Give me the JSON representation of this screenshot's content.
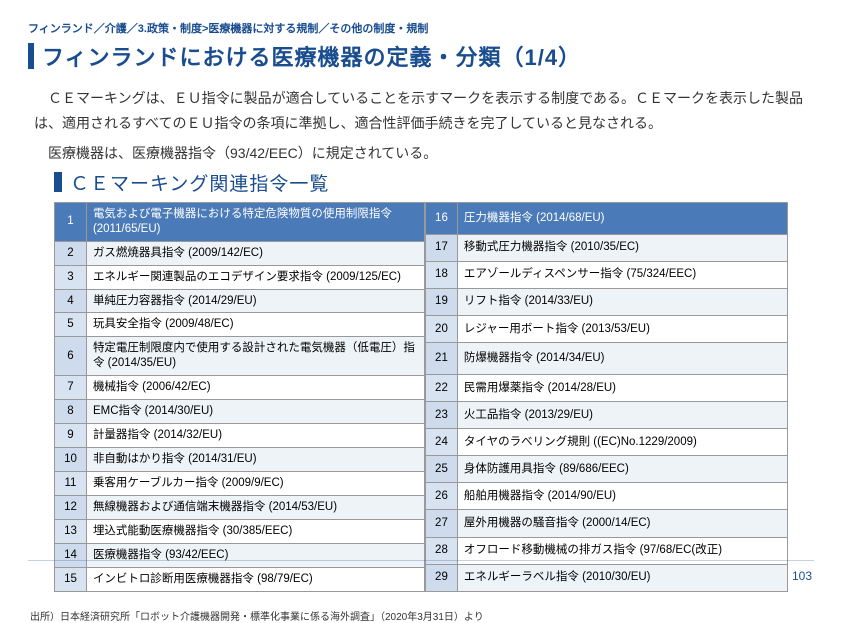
{
  "breadcrumb": "フィンランド／介護／3.政策・制度>医療機器に対する規制／その他の制度・規制",
  "title": "フィンランドにおける医療機器の定義・分類（1/4）",
  "intro": "ＣＥマーキングは、ＥＵ指令に製品が適合していることを示すマークを表示する制度である。ＣＥマークを表示した製品は、適用されるすべてのＥＵ指令の条項に準拠し、適合性評価手続きを完了していると見なされる。",
  "subintro": "医療機器は、医療機器指令（93/42/EEC）に規定されている。",
  "subsection": "ＣＥマーキング関連指令一覧",
  "left_rows": [
    {
      "n": "1",
      "t": "電気および電子機器における特定危険物質の使用制限指令 (2011/65/EU)"
    },
    {
      "n": "2",
      "t": "ガス燃焼器具指令 (2009/142/EC)"
    },
    {
      "n": "3",
      "t": "エネルギー関連製品のエコデザイン要求指令 (2009/125/EC)"
    },
    {
      "n": "4",
      "t": "単純圧力容器指令 (2014/29/EU)"
    },
    {
      "n": "5",
      "t": "玩具安全指令 (2009/48/EC)"
    },
    {
      "n": "6",
      "t": "特定電圧制限度内で使用する設計された電気機器（低電圧）指令 (2014/35/EU)"
    },
    {
      "n": "7",
      "t": "機械指令 (2006/42/EC)"
    },
    {
      "n": "8",
      "t": "EMC指令 (2014/30/EU)"
    },
    {
      "n": "9",
      "t": "計量器指令 (2014/32/EU)"
    },
    {
      "n": "10",
      "t": "非自動はかり指令 (2014/31/EU)"
    },
    {
      "n": "11",
      "t": "乗客用ケーブルカー指令 (2009/9/EC)"
    },
    {
      "n": "12",
      "t": "無線機器および通信端末機器指令 (2014/53/EU)"
    },
    {
      "n": "13",
      "t": "埋込式能動医療機器指令 (30/385/EEC)"
    },
    {
      "n": "14",
      "t": "医療機器指令 (93/42/EEC)"
    },
    {
      "n": "15",
      "t": "インビトロ診断用医療機器指令 (98/79/EC)"
    }
  ],
  "right_rows": [
    {
      "n": "16",
      "t": "圧力機器指令 (2014/68/EU)"
    },
    {
      "n": "17",
      "t": "移動式圧力機器指令 (2010/35/EC)"
    },
    {
      "n": "18",
      "t": "エアゾールディスペンサー指令 (75/324/EEC)"
    },
    {
      "n": "19",
      "t": "リフト指令 (2014/33/EU)"
    },
    {
      "n": "20",
      "t": "レジャー用ボート指令 (2013/53/EU)"
    },
    {
      "n": "21",
      "t": "防爆機器指令 (2014/34/EU)"
    },
    {
      "n": "22",
      "t": "民需用爆薬指令 (2014/28/EU)"
    },
    {
      "n": "23",
      "t": "火工品指令 (2013/29/EU)"
    },
    {
      "n": "24",
      "t": "タイヤのラべリング規則 ((EC)No.1229/2009)"
    },
    {
      "n": "25",
      "t": "身体防護用具指令 (89/686/EEC)"
    },
    {
      "n": "26",
      "t": "船舶用機器指令 (2014/90/EU)"
    },
    {
      "n": "27",
      "t": "屋外用機器の騒音指令 (2000/14/EC)"
    },
    {
      "n": "28",
      "t": "オフロード移動機械の排ガス指令 (97/68/EC(改正)"
    },
    {
      "n": "29",
      "t": "エネルギーラベル指令 (2010/30/EU)"
    }
  ],
  "source": "出所）日本経済研究所「ロボット介護機器開発・標準化事業に係る海外調査」（2020年3月31日）より",
  "page_number": "103",
  "colors": {
    "brand": "#1a4d8f",
    "header_row": "#4a7ab8",
    "num_bg": "#d7e3f0",
    "num_bg_alt": "#cddbec",
    "row_alt": "#eef3f8",
    "border": "#999999"
  }
}
